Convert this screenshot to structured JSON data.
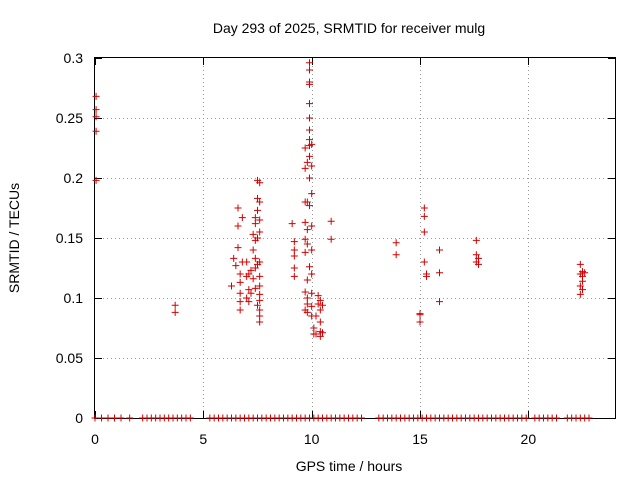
{
  "chart_data": {
    "type": "scatter",
    "title": "Day 293 of 2025, SRMTID for receiver mulg",
    "xlabel": "GPS time / hours",
    "ylabel": "SRMTID / TECUs",
    "xlim": [
      0,
      24
    ],
    "ylim": [
      0,
      0.3
    ],
    "x_ticks": [
      0,
      5,
      10,
      15,
      20
    ],
    "x_tick_labels": [
      "0",
      "5",
      "10",
      "15",
      "20"
    ],
    "y_ticks": [
      0,
      0.05,
      0.1,
      0.15,
      0.2,
      0.25,
      0.3
    ],
    "y_tick_labels": [
      "0",
      "0.05",
      "0.1",
      "0.15",
      "0.2",
      "0.25",
      "0.3"
    ],
    "grid": true,
    "marker": "plus",
    "series": [
      {
        "name": "SRMTID",
        "color": "#d40000",
        "x": [
          0.05,
          0.05,
          0.05,
          0.05,
          0.05,
          3.7,
          3.7,
          6.3,
          6.4,
          6.5,
          6.6,
          6.6,
          6.6,
          6.7,
          6.7,
          6.7,
          6.7,
          6.7,
          6.8,
          6.8,
          7.0,
          7.0,
          7.0,
          7.1,
          7.1,
          7.1,
          7.2,
          7.2,
          7.3,
          7.3,
          7.3,
          7.4,
          7.4,
          7.4,
          7.4,
          7.4,
          7.4,
          7.5,
          7.5,
          7.5,
          7.5,
          7.5,
          7.5,
          7.6,
          7.6,
          7.6,
          7.6,
          7.6,
          7.6,
          7.6,
          7.6,
          7.6,
          7.6,
          7.6,
          7.6,
          9.1,
          9.2,
          9.2,
          9.2,
          9.2,
          9.2,
          9.7,
          9.7,
          9.7,
          9.7,
          9.7,
          9.7,
          9.7,
          9.7,
          9.8,
          9.8,
          9.8,
          9.8,
          9.8,
          9.8,
          9.8,
          9.8,
          9.9,
          9.9,
          9.9,
          9.9,
          9.9,
          9.9,
          9.9,
          9.9,
          9.9,
          9.9,
          9.9,
          9.9,
          9.9,
          10.0,
          10.0,
          10.0,
          10.0,
          10.0,
          10.0,
          10.0,
          10.0,
          10.0,
          10.1,
          10.1,
          10.2,
          10.2,
          10.3,
          10.3,
          10.4,
          10.4,
          10.4,
          10.4,
          10.4,
          10.5,
          10.5,
          10.9,
          10.9,
          13.9,
          13.9,
          15.0,
          15.0,
          15.0,
          15.2,
          15.2,
          15.2,
          15.2,
          15.3,
          15.3,
          15.9,
          15.9,
          15.9,
          17.6,
          17.6,
          17.6,
          17.7,
          17.7,
          22.4,
          22.4,
          22.4,
          22.4,
          22.5,
          22.5,
          22.5,
          22.5,
          22.6,
          0.0,
          0.3,
          0.6,
          0.9,
          1.2,
          1.6,
          2.2,
          2.4,
          2.6,
          2.8,
          3.0,
          3.2,
          3.4,
          3.6,
          3.8,
          4.0,
          4.2,
          4.4,
          5.3,
          5.5,
          5.7,
          5.9,
          6.1,
          6.3,
          6.5,
          6.7,
          6.9,
          7.1,
          7.3,
          7.5,
          7.7,
          7.9,
          8.1,
          8.3,
          8.5,
          8.7,
          8.9,
          9.1,
          9.3,
          9.5,
          9.7,
          9.9,
          10.1,
          10.3,
          10.5,
          10.7,
          10.9,
          11.1,
          11.3,
          11.5,
          11.7,
          11.9,
          12.1,
          12.3,
          13.1,
          13.3,
          13.5,
          13.7,
          13.9,
          14.1,
          14.3,
          14.5,
          14.7,
          14.9,
          15.1,
          15.3,
          15.5,
          15.7,
          15.9,
          16.1,
          16.3,
          16.5,
          16.7,
          16.9,
          17.1,
          17.3,
          17.5,
          17.7,
          17.9,
          18.1,
          18.3,
          18.5,
          18.7,
          18.9,
          19.1,
          19.3,
          19.5,
          19.7,
          19.9,
          20.3,
          20.5,
          20.7,
          20.9,
          21.1,
          21.3,
          21.8,
          22.0,
          22.2,
          22.4,
          22.6,
          22.8
        ],
        "y": [
          0.268,
          0.257,
          0.251,
          0.239,
          0.198,
          0.094,
          0.088,
          0.11,
          0.133,
          0.127,
          0.175,
          0.16,
          0.142,
          0.12,
          0.113,
          0.104,
          0.097,
          0.09,
          0.167,
          0.13,
          0.13,
          0.1,
          0.118,
          0.107,
          0.12,
          0.097,
          0.123,
          0.104,
          0.153,
          0.14,
          0.116,
          0.167,
          0.162,
          0.133,
          0.125,
          0.108,
          0.148,
          0.198,
          0.183,
          0.173,
          0.15,
          0.128,
          0.094,
          0.196,
          0.18,
          0.165,
          0.155,
          0.13,
          0.118,
          0.11,
          0.103,
          0.098,
          0.09,
          0.085,
          0.08,
          0.162,
          0.147,
          0.14,
          0.135,
          0.125,
          0.118,
          0.225,
          0.208,
          0.18,
          0.163,
          0.149,
          0.138,
          0.105,
          0.09,
          0.213,
          0.18,
          0.157,
          0.145,
          0.115,
          0.1,
          0.095,
          0.088,
          0.296,
          0.29,
          0.28,
          0.278,
          0.262,
          0.25,
          0.24,
          0.232,
          0.227,
          0.218,
          0.2,
          0.177,
          0.126,
          0.228,
          0.21,
          0.187,
          0.16,
          0.14,
          0.12,
          0.104,
          0.093,
          0.085,
          0.075,
          0.07,
          0.085,
          0.07,
          0.102,
          0.095,
          0.098,
          0.09,
          0.08,
          0.068,
          0.072,
          0.071,
          0.094,
          0.164,
          0.149,
          0.146,
          0.136,
          0.087,
          0.086,
          0.08,
          0.175,
          0.168,
          0.155,
          0.13,
          0.118,
          0.12,
          0.14,
          0.121,
          0.097,
          0.148,
          0.136,
          0.13,
          0.133,
          0.128,
          0.128,
          0.12,
          0.11,
          0.103,
          0.122,
          0.118,
          0.114,
          0.107,
          0.121,
          0,
          0,
          0,
          0,
          0,
          0,
          0,
          0,
          0,
          0,
          0,
          0,
          0,
          0,
          0,
          0,
          0,
          0,
          0,
          0,
          0,
          0,
          0,
          0,
          0,
          0,
          0,
          0,
          0,
          0,
          0,
          0,
          0,
          0,
          0,
          0,
          0,
          0,
          0,
          0,
          0,
          0,
          0,
          0,
          0,
          0,
          0,
          0,
          0,
          0,
          0,
          0,
          0,
          0,
          0,
          0,
          0,
          0,
          0,
          0,
          0,
          0,
          0,
          0,
          0,
          0,
          0,
          0,
          0,
          0,
          0,
          0,
          0,
          0,
          0,
          0,
          0,
          0,
          0,
          0,
          0,
          0,
          0,
          0,
          0,
          0,
          0,
          0,
          0,
          0,
          0,
          0,
          0,
          0,
          0,
          0,
          0,
          0,
          0,
          0,
          0
        ]
      }
    ]
  }
}
